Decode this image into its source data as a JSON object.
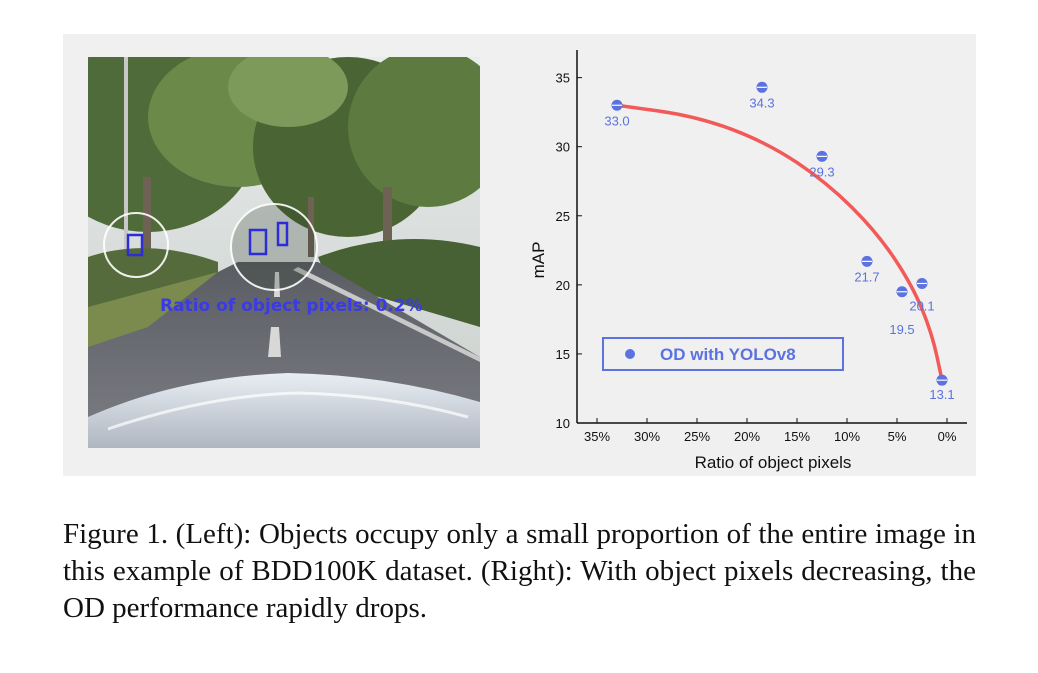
{
  "left_panel": {
    "overlay_text": "Ratio of object pixels: 0.2%"
  },
  "colors": {
    "curve": "#f25a5a",
    "points": "#5b72e0",
    "labels": "#5b72e0",
    "overlay": "#3a3ae6"
  },
  "chart_data": {
    "type": "scatter",
    "title": "",
    "xlabel": "Ratio of object pixels",
    "ylabel": "mAP",
    "x_ticks": [
      "35%",
      "30%",
      "25%",
      "20%",
      "15%",
      "10%",
      "5%",
      "0%"
    ],
    "x_tick_values": [
      35,
      30,
      25,
      20,
      15,
      10,
      5,
      0
    ],
    "y_ticks": [
      "10",
      "15",
      "20",
      "25",
      "30",
      "35"
    ],
    "y_tick_values": [
      10,
      15,
      20,
      25,
      30,
      35
    ],
    "xlim": [
      37,
      -2
    ],
    "ylim": [
      10,
      37
    ],
    "series": [
      {
        "name": "OD with YOLOv8",
        "points": [
          {
            "x": 33.0,
            "y": 33.0,
            "label": "33.0"
          },
          {
            "x": 18.5,
            "y": 34.3,
            "label": "34.3"
          },
          {
            "x": 12.5,
            "y": 29.3,
            "label": "29.3"
          },
          {
            "x": 8.0,
            "y": 21.7,
            "label": "21.7"
          },
          {
            "x": 4.5,
            "y": 19.5,
            "label": "19.5"
          },
          {
            "x": 2.5,
            "y": 20.1,
            "label": "20.1"
          },
          {
            "x": 0.5,
            "y": 13.1,
            "label": "13.1"
          }
        ]
      }
    ],
    "trend_curve": [
      [
        33.0,
        33.0
      ],
      [
        25.0,
        32.2
      ],
      [
        18.0,
        30.3
      ],
      [
        12.0,
        27.4
      ],
      [
        7.0,
        23.8
      ],
      [
        3.5,
        20.0
      ],
      [
        1.5,
        16.5
      ],
      [
        0.5,
        13.1
      ]
    ],
    "legend_position": "bottom-left"
  },
  "caption": {
    "text": "Figure 1. (Left): Objects occupy only a small proportion of the entire image in this example of BDD100K dataset. (Right): With object pixels decreasing, the OD performance rapidly drops."
  }
}
